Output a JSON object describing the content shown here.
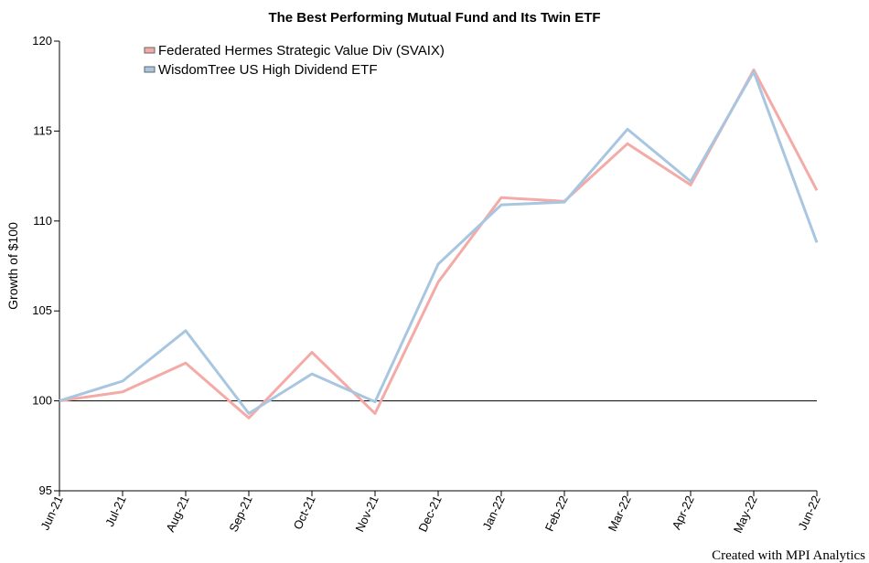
{
  "chart_data": {
    "type": "line",
    "title": "The Best Performing Mutual Fund and Its Twin ETF",
    "ylabel": "Growth of $100",
    "xlabel": "",
    "categories": [
      "Jun-21",
      "Jul-21",
      "Aug-21",
      "Sep-21",
      "Oct-21",
      "Nov-21",
      "Dec-21",
      "Jan-22",
      "Feb-22",
      "Mar-22",
      "Apr-22",
      "May-22",
      "Jun-22"
    ],
    "ylim": [
      95,
      120
    ],
    "yticks": [
      95,
      100,
      105,
      110,
      115,
      120
    ],
    "reference_line": 100,
    "legend_position": "top-left",
    "grid": false,
    "series": [
      {
        "name": "Federated Hermes Strategic Value Div (SVAIX)",
        "color": "#f4aaa6",
        "values": [
          100.0,
          100.5,
          102.1,
          99.05,
          102.7,
          99.3,
          106.6,
          111.3,
          111.1,
          114.3,
          112.0,
          118.4,
          111.7
        ]
      },
      {
        "name": "WisdomTree US High Dividend ETF",
        "color": "#a9c6e1",
        "values": [
          100.0,
          101.1,
          103.9,
          99.3,
          101.5,
          99.95,
          107.6,
          110.9,
          111.05,
          115.1,
          112.2,
          118.3,
          108.8
        ]
      }
    ]
  },
  "footer": {
    "credit": "Created with MPI Analytics"
  }
}
